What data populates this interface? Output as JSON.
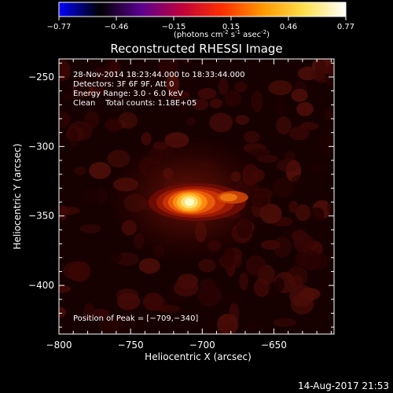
{
  "colorbar": {
    "ticks": [
      "-0.77",
      "-0.46",
      "-0.15",
      "0.15",
      "0.46",
      "0.77"
    ],
    "units_label": "(photons cm",
    "units_exp1": "-2",
    "units_mid": " s",
    "units_exp2": "-1",
    "units_mid2": " asec",
    "units_exp3": "-2",
    "units_end": ")",
    "stops": [
      "#0000ff",
      "#000000",
      "#5a0090",
      "#c0003a",
      "#ff3000",
      "#ff9a00",
      "#ffe050",
      "#ffffff"
    ]
  },
  "chart_data": {
    "type": "heatmap",
    "title": "Reconstructed RHESSI Image",
    "xlabel": "Heliocentric X (arcsec)",
    "ylabel": "Heliocentric Y (arcsec)",
    "xlim": [
      -800,
      -608
    ],
    "ylim": [
      -435,
      -237
    ],
    "x_ticks": [
      -800,
      -750,
      -700,
      -650
    ],
    "y_ticks": [
      -250,
      -300,
      -350,
      -400
    ],
    "x_tick_labels": [
      "−800",
      "−750",
      "−700",
      "−650"
    ],
    "y_tick_labels": [
      "−250",
      "−300",
      "−350",
      "−400"
    ],
    "peak": {
      "x": -709,
      "y": -340
    },
    "annotations": [
      "28-Nov-2014 18:23:44.000 to 18:33:44.000",
      "Detectors: 3F 6F 9F, Att 0",
      "Energy Range: 3.0 - 6.0 keV",
      "Clean    Total counts: 1.18E+05"
    ],
    "peak_label": "Position of Peak = [−709,−340]",
    "value_range": [
      -0.77,
      0.77
    ]
  },
  "footer": {
    "timestamp": "14-Aug-2017 21:53"
  }
}
